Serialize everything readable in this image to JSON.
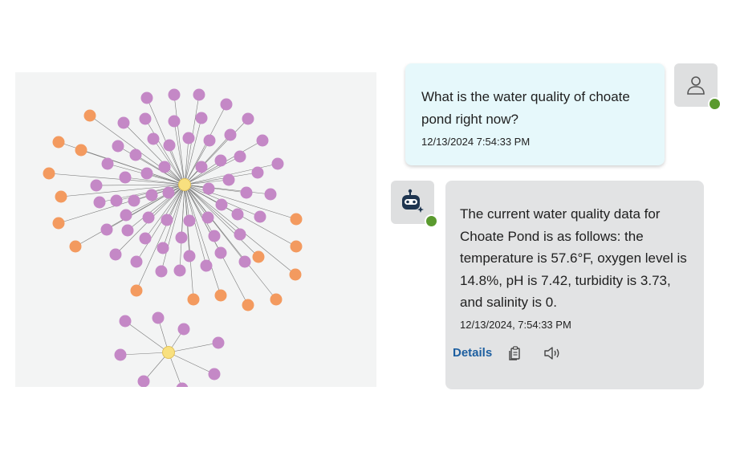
{
  "graph": {
    "colors": {
      "hub": "#f8e07f",
      "purple": "#c488c6",
      "orange": "#f39a5f",
      "edge": "#7a7a7a",
      "background": "#f3f4f4"
    }
  },
  "chat": {
    "messages": [
      {
        "role": "user",
        "avatar_icon": "person-icon",
        "text": "What is the water quality of choate pond right now?",
        "timestamp": "12/13/2024 7:54:33 PM"
      },
      {
        "role": "assistant",
        "avatar_icon": "robot-icon",
        "text": "The current water quality data for Choate Pond is as follows: the temperature is 57.6°F, oxygen level is 14.8%, pH is 7.42, turbidity is 3.73, and salinity is 0.",
        "timestamp": "12/13/2024, 7:54:33 PM",
        "actions": {
          "details_label": "Details",
          "copy_icon": "copy-icon",
          "speak_icon": "speaker-icon"
        }
      }
    ],
    "status_color": "#5a9a2e"
  }
}
